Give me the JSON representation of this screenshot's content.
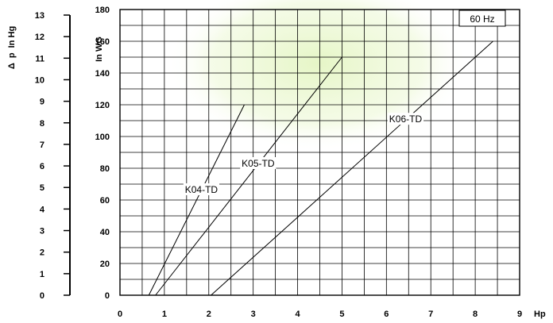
{
  "chart_data": {
    "type": "line",
    "title": "",
    "xlabel": "Hp",
    "ylabel": "In WG",
    "y2label": "Δ  p  In Hg",
    "xlim": [
      0,
      9
    ],
    "ylim": [
      0,
      180
    ],
    "y2lim": [
      0,
      13
    ],
    "x_ticks": [
      "0",
      "1",
      "2",
      "3",
      "4",
      "5",
      "6",
      "7",
      "8",
      "9"
    ],
    "y_ticks": [
      "0",
      "20",
      "40",
      "60",
      "80",
      "100",
      "120",
      "140",
      "160",
      "180"
    ],
    "y2_ticks": [
      "0",
      "1",
      "2",
      "3",
      "4",
      "5",
      "6",
      "7",
      "8",
      "9",
      "10",
      "11",
      "12",
      "13"
    ],
    "grid": true,
    "annotation": "60 Hz",
    "series": [
      {
        "name": "K04-TD",
        "x": [
          0.65,
          2.8
        ],
        "y": [
          0,
          120
        ]
      },
      {
        "name": "K05-TD",
        "x": [
          0.8,
          5.0
        ],
        "y": [
          0,
          150
        ]
      },
      {
        "name": "K06-TD",
        "x": [
          2.05,
          8.4
        ],
        "y": [
          0,
          160
        ]
      }
    ]
  },
  "colors": {
    "background_watermark": "#e8f7c8",
    "grid": "#000000",
    "series": "#000000"
  }
}
